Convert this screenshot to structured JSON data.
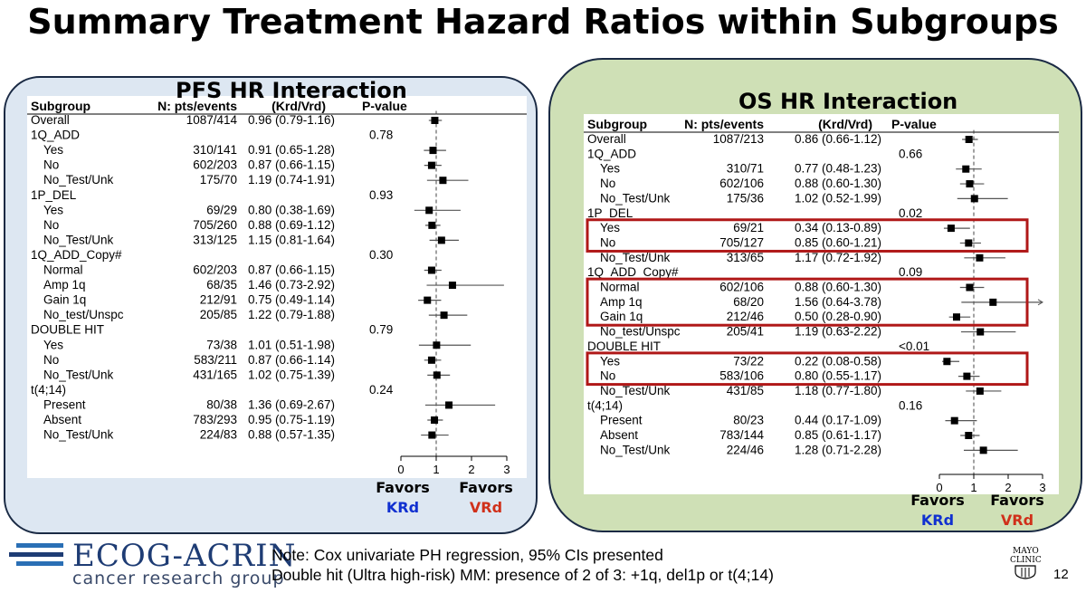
{
  "slide": {
    "title": "Summary Treatment Hazard Ratios within Subgroups",
    "note_line1": "Note: Cox univariate PH regression, 95% CIs presented",
    "note_line2": "Double hit (Ultra high-risk) MM: presence of  2 of 3: +1q, del1p or t(4;14)",
    "logo_text": "ECOG-ACRIN",
    "logo_subtext": "cancer research group",
    "mayo_line1": "MAYO",
    "mayo_line2": "CLINIC",
    "page_number": "12",
    "favors_left": "Favors",
    "favors_left_arm": "KRd",
    "favors_right": "Favors",
    "favors_right_arm": "VRd"
  },
  "colors": {
    "pfs_panel": "#dde7f2",
    "os_panel": "#cfe0b6",
    "krd": "#1030d0",
    "vrd": "#d0301a",
    "highlight_box": "#b01818"
  },
  "chart_data": [
    {
      "type": "forest",
      "title": "PFS HR Interaction",
      "headers": [
        "Subgroup",
        "N: pts/events",
        "(Krd/Vrd)",
        "P-value"
      ],
      "xticks": [
        0,
        1,
        2,
        3
      ],
      "xlim": [
        0,
        3
      ],
      "reference_line": 1,
      "rows": [
        {
          "label": "Overall",
          "n": "1087/414",
          "hr_text": "0.96 (0.79-1.16)",
          "hr": 0.96,
          "lo": 0.79,
          "hi": 1.16,
          "p": "",
          "indent": false
        },
        {
          "label": "1Q_ADD",
          "n": "",
          "hr_text": "",
          "p": "0.78",
          "indent": false
        },
        {
          "label": "Yes",
          "n": "310/141",
          "hr_text": "0.91 (0.65-1.28)",
          "hr": 0.91,
          "lo": 0.65,
          "hi": 1.28,
          "p": "",
          "indent": true
        },
        {
          "label": "No",
          "n": "602/203",
          "hr_text": "0.87 (0.66-1.15)",
          "hr": 0.87,
          "lo": 0.66,
          "hi": 1.15,
          "p": "",
          "indent": true
        },
        {
          "label": "No_Test/Unk",
          "n": "175/70",
          "hr_text": "1.19 (0.74-1.91)",
          "hr": 1.19,
          "lo": 0.74,
          "hi": 1.91,
          "p": "",
          "indent": true
        },
        {
          "label": "1P_DEL",
          "n": "",
          "hr_text": "",
          "p": "0.93",
          "indent": false
        },
        {
          "label": "Yes",
          "n": "69/29",
          "hr_text": "0.80 (0.38-1.69)",
          "hr": 0.8,
          "lo": 0.38,
          "hi": 1.69,
          "p": "",
          "indent": true
        },
        {
          "label": "No",
          "n": "705/260",
          "hr_text": "0.88 (0.69-1.12)",
          "hr": 0.88,
          "lo": 0.69,
          "hi": 1.12,
          "p": "",
          "indent": true
        },
        {
          "label": "No_Test/Unk",
          "n": "313/125",
          "hr_text": "1.15 (0.81-1.64)",
          "hr": 1.15,
          "lo": 0.81,
          "hi": 1.64,
          "p": "",
          "indent": true
        },
        {
          "label": "1Q_ADD_Copy#",
          "n": "",
          "hr_text": "",
          "p": "0.30",
          "indent": false
        },
        {
          "label": "Normal",
          "n": "602/203",
          "hr_text": "0.87 (0.66-1.15)",
          "hr": 0.87,
          "lo": 0.66,
          "hi": 1.15,
          "p": "",
          "indent": true
        },
        {
          "label": "Amp 1q",
          "n": "68/35",
          "hr_text": "1.46 (0.73-2.92)",
          "hr": 1.46,
          "lo": 0.73,
          "hi": 2.92,
          "p": "",
          "indent": true
        },
        {
          "label": "Gain 1q",
          "n": "212/91",
          "hr_text": "0.75 (0.49-1.14)",
          "hr": 0.75,
          "lo": 0.49,
          "hi": 1.14,
          "p": "",
          "indent": true
        },
        {
          "label": "No_test/Unspc",
          "n": "205/85",
          "hr_text": "1.22 (0.79-1.88)",
          "hr": 1.22,
          "lo": 0.79,
          "hi": 1.88,
          "p": "",
          "indent": true
        },
        {
          "label": "DOUBLE HIT",
          "n": "",
          "hr_text": "",
          "p": "0.79",
          "indent": false
        },
        {
          "label": "Yes",
          "n": "73/38",
          "hr_text": "1.01 (0.51-1.98)",
          "hr": 1.01,
          "lo": 0.51,
          "hi": 1.98,
          "p": "",
          "indent": true
        },
        {
          "label": "No",
          "n": "583/211",
          "hr_text": "0.87 (0.66-1.14)",
          "hr": 0.87,
          "lo": 0.66,
          "hi": 1.14,
          "p": "",
          "indent": true
        },
        {
          "label": "No_Test/Unk",
          "n": "431/165",
          "hr_text": "1.02 (0.75-1.39)",
          "hr": 1.02,
          "lo": 0.75,
          "hi": 1.39,
          "p": "",
          "indent": true
        },
        {
          "label": "t(4;14)",
          "n": "",
          "hr_text": "",
          "p": "0.24",
          "indent": false
        },
        {
          "label": "Present",
          "n": "80/38",
          "hr_text": "1.36 (0.69-2.67)",
          "hr": 1.36,
          "lo": 0.69,
          "hi": 2.67,
          "p": "",
          "indent": true
        },
        {
          "label": "Absent",
          "n": "783/293",
          "hr_text": "0.95 (0.75-1.19)",
          "hr": 0.95,
          "lo": 0.75,
          "hi": 1.19,
          "p": "",
          "indent": true
        },
        {
          "label": "No_Test/Unk",
          "n": "224/83",
          "hr_text": "0.88 (0.57-1.35)",
          "hr": 0.88,
          "lo": 0.57,
          "hi": 1.35,
          "p": "",
          "indent": true
        }
      ]
    },
    {
      "type": "forest",
      "title": "OS HR Interaction",
      "headers": [
        "Subgroup",
        "N: pts/events",
        "(Krd/Vrd)",
        "P-value"
      ],
      "xticks": [
        0,
        1,
        2,
        3
      ],
      "xlim": [
        0,
        3
      ],
      "reference_line": 1,
      "highlighted_groups": [
        [
          6,
          7
        ],
        [
          10,
          12
        ],
        [
          15,
          16
        ]
      ],
      "rows": [
        {
          "label": "Overall",
          "n": "1087/213",
          "hr_text": "0.86 (0.66-1.12)",
          "hr": 0.86,
          "lo": 0.66,
          "hi": 1.12,
          "p": "",
          "indent": false
        },
        {
          "label": "1Q_ADD",
          "n": "",
          "hr_text": "",
          "p": "0.66",
          "indent": false
        },
        {
          "label": "Yes",
          "n": "310/71",
          "hr_text": "0.77 (0.48-1.23)",
          "hr": 0.77,
          "lo": 0.48,
          "hi": 1.23,
          "p": "",
          "indent": true
        },
        {
          "label": "No",
          "n": "602/106",
          "hr_text": "0.88 (0.60-1.30)",
          "hr": 0.88,
          "lo": 0.6,
          "hi": 1.3,
          "p": "",
          "indent": true
        },
        {
          "label": "No_Test/Unk",
          "n": "175/36",
          "hr_text": "1.02 (0.52-1.99)",
          "hr": 1.02,
          "lo": 0.52,
          "hi": 1.99,
          "p": "",
          "indent": true
        },
        {
          "label": "1P_DEL",
          "n": "",
          "hr_text": "",
          "p": "0.02",
          "indent": false
        },
        {
          "label": "Yes",
          "n": "69/21",
          "hr_text": "0.34 (0.13-0.89)",
          "hr": 0.34,
          "lo": 0.13,
          "hi": 0.89,
          "p": "",
          "indent": true
        },
        {
          "label": "No",
          "n": "705/127",
          "hr_text": "0.85 (0.60-1.21)",
          "hr": 0.85,
          "lo": 0.6,
          "hi": 1.21,
          "p": "",
          "indent": true
        },
        {
          "label": "No_Test/Unk",
          "n": "313/65",
          "hr_text": "1.17 (0.72-1.92)",
          "hr": 1.17,
          "lo": 0.72,
          "hi": 1.92,
          "p": "",
          "indent": true
        },
        {
          "label": "1Q_ADD_Copy#",
          "n": "",
          "hr_text": "",
          "p": "0.09",
          "indent": false
        },
        {
          "label": "Normal",
          "n": "602/106",
          "hr_text": "0.88 (0.60-1.30)",
          "hr": 0.88,
          "lo": 0.6,
          "hi": 1.3,
          "p": "",
          "indent": true
        },
        {
          "label": "Amp 1q",
          "n": "68/20",
          "hr_text": "1.56 (0.64-3.78)",
          "hr": 1.56,
          "lo": 0.64,
          "hi": 3.78,
          "p": "",
          "indent": true
        },
        {
          "label": "Gain 1q",
          "n": "212/46",
          "hr_text": "0.50 (0.28-0.90)",
          "hr": 0.5,
          "lo": 0.28,
          "hi": 0.9,
          "p": "",
          "indent": true
        },
        {
          "label": "No_test/Unspc",
          "n": "205/41",
          "hr_text": "1.19 (0.63-2.22)",
          "hr": 1.19,
          "lo": 0.63,
          "hi": 2.22,
          "p": "",
          "indent": true
        },
        {
          "label": "DOUBLE HIT",
          "n": "",
          "hr_text": "",
          "p": "<0.01",
          "indent": false
        },
        {
          "label": "Yes",
          "n": "73/22",
          "hr_text": "0.22 (0.08-0.58)",
          "hr": 0.22,
          "lo": 0.08,
          "hi": 0.58,
          "p": "",
          "indent": true
        },
        {
          "label": "No",
          "n": "583/106",
          "hr_text": "0.80 (0.55-1.17)",
          "hr": 0.8,
          "lo": 0.55,
          "hi": 1.17,
          "p": "",
          "indent": true
        },
        {
          "label": "No_Test/Unk",
          "n": "431/85",
          "hr_text": "1.18 (0.77-1.80)",
          "hr": 1.18,
          "lo": 0.77,
          "hi": 1.8,
          "p": "",
          "indent": true
        },
        {
          "label": "t(4;14)",
          "n": "",
          "hr_text": "",
          "p": "0.16",
          "indent": false
        },
        {
          "label": "Present",
          "n": "80/23",
          "hr_text": "0.44 (0.17-1.09)",
          "hr": 0.44,
          "lo": 0.17,
          "hi": 1.09,
          "p": "",
          "indent": true
        },
        {
          "label": "Absent",
          "n": "783/144",
          "hr_text": "0.85 (0.61-1.17)",
          "hr": 0.85,
          "lo": 0.61,
          "hi": 1.17,
          "p": "",
          "indent": true
        },
        {
          "label": "No_Test/Unk",
          "n": "224/46",
          "hr_text": "1.28 (0.71-2.28)",
          "hr": 1.28,
          "lo": 0.71,
          "hi": 2.28,
          "p": "",
          "indent": true
        }
      ]
    }
  ]
}
